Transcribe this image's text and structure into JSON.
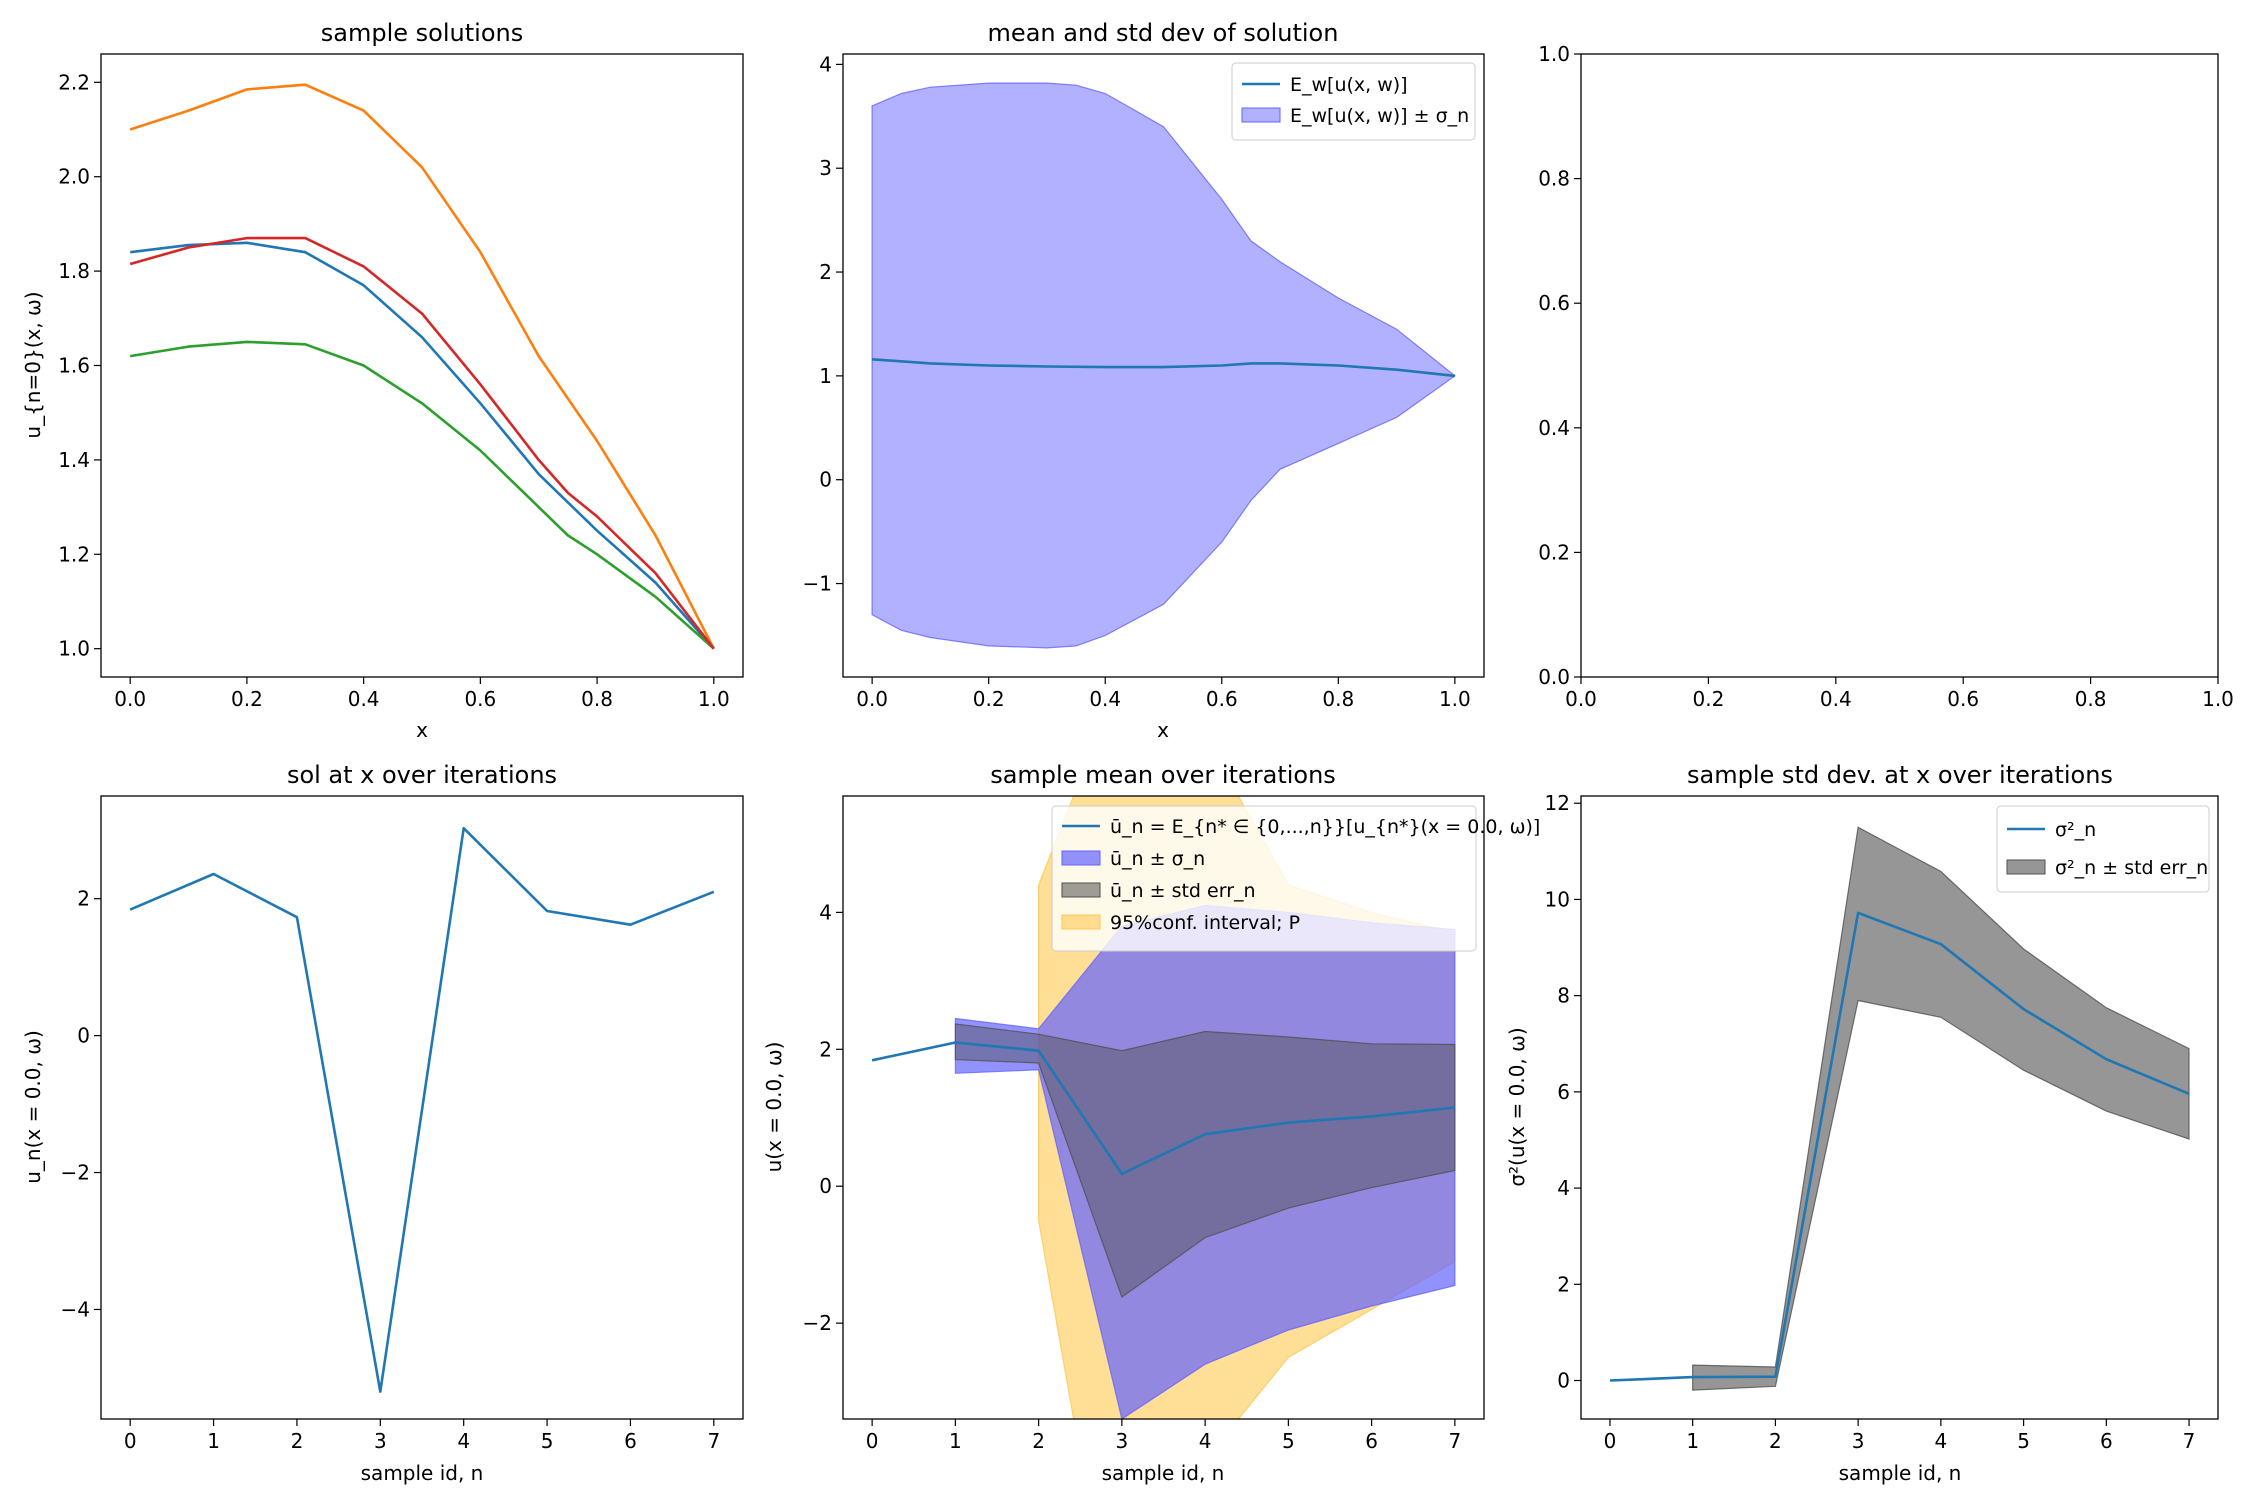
{
  "colors": {
    "c0": "#1f77b4",
    "c1": "#ff7f0e",
    "c2": "#2ca02c",
    "c3": "#d62728",
    "blue_fill": "#6464ff",
    "orange_fill": "#ffc850",
    "gray_fill": "#505050",
    "brown_fill": "#8c5a46"
  },
  "chart_data": [
    {
      "id": "p1",
      "type": "line",
      "title": "sample solutions",
      "xlabel": "x",
      "ylabel": "u_{n=0}(x, ω)",
      "xlim": [
        -0.05,
        1.05
      ],
      "ylim": [
        0.94,
        2.26
      ],
      "xticks": [
        0,
        0.2,
        0.4,
        0.6,
        0.8,
        1.0
      ],
      "xticklabels": [
        "0.0",
        "0.2",
        "0.4",
        "0.6",
        "0.8",
        "1.0"
      ],
      "yticks": [
        1.0,
        1.2,
        1.4,
        1.6,
        1.8,
        2.0,
        2.2
      ],
      "yticklabels": [
        "1.0",
        "1.2",
        "1.4",
        "1.6",
        "1.8",
        "2.0",
        "2.2"
      ],
      "series": [
        {
          "color": "#1f77b4",
          "x": [
            0,
            0.1,
            0.2,
            0.3,
            0.4,
            0.5,
            0.6,
            0.7,
            0.75,
            0.8,
            0.9,
            1.0
          ],
          "y": [
            1.84,
            1.855,
            1.86,
            1.84,
            1.77,
            1.66,
            1.52,
            1.37,
            1.31,
            1.25,
            1.14,
            1.0
          ]
        },
        {
          "color": "#ff7f0e",
          "x": [
            0,
            0.1,
            0.2,
            0.3,
            0.4,
            0.5,
            0.6,
            0.7,
            0.8,
            0.85,
            0.9,
            1.0
          ],
          "y": [
            2.1,
            2.14,
            2.185,
            2.195,
            2.14,
            2.02,
            1.84,
            1.62,
            1.44,
            1.34,
            1.24,
            1.0
          ]
        },
        {
          "color": "#2ca02c",
          "x": [
            0,
            0.1,
            0.2,
            0.3,
            0.4,
            0.5,
            0.6,
            0.7,
            0.75,
            0.8,
            0.9,
            1.0
          ],
          "y": [
            1.62,
            1.64,
            1.65,
            1.645,
            1.6,
            1.52,
            1.42,
            1.3,
            1.24,
            1.2,
            1.11,
            1.0
          ]
        },
        {
          "color": "#d62728",
          "x": [
            0,
            0.1,
            0.2,
            0.3,
            0.4,
            0.5,
            0.6,
            0.7,
            0.75,
            0.8,
            0.9,
            1.0
          ],
          "y": [
            1.815,
            1.85,
            1.87,
            1.87,
            1.81,
            1.71,
            1.56,
            1.4,
            1.33,
            1.28,
            1.16,
            1.0
          ]
        }
      ]
    },
    {
      "id": "p2",
      "type": "area",
      "title": "mean and std dev of solution",
      "xlabel": "x",
      "ylabel": "",
      "xlim": [
        -0.05,
        1.05
      ],
      "ylim": [
        -1.9,
        4.1
      ],
      "xticks": [
        0,
        0.2,
        0.4,
        0.6,
        0.8,
        1.0
      ],
      "xticklabels": [
        "0.0",
        "0.2",
        "0.4",
        "0.6",
        "0.8",
        "1.0"
      ],
      "yticks": [
        -1,
        0,
        1,
        2,
        3,
        4
      ],
      "yticklabels": [
        "−1",
        "0",
        "1",
        "2",
        "3",
        "4"
      ],
      "band": {
        "color": "#6464ff",
        "x": [
          0,
          0.05,
          0.1,
          0.2,
          0.3,
          0.35,
          0.4,
          0.5,
          0.6,
          0.65,
          0.7,
          0.8,
          0.9,
          1.0
        ],
        "lower": [
          -1.3,
          -1.45,
          -1.52,
          -1.6,
          -1.62,
          -1.6,
          -1.5,
          -1.2,
          -0.6,
          -0.2,
          0.1,
          0.35,
          0.6,
          1.0
        ],
        "upper": [
          3.6,
          3.72,
          3.78,
          3.82,
          3.82,
          3.8,
          3.72,
          3.4,
          2.7,
          2.3,
          2.1,
          1.75,
          1.45,
          1.0
        ]
      },
      "mean": {
        "color": "#1f77b4",
        "x": [
          0,
          0.1,
          0.2,
          0.3,
          0.4,
          0.5,
          0.6,
          0.65,
          0.7,
          0.8,
          0.9,
          1.0
        ],
        "y": [
          1.16,
          1.12,
          1.1,
          1.09,
          1.085,
          1.085,
          1.1,
          1.12,
          1.12,
          1.1,
          1.06,
          1.0
        ]
      },
      "legend": {
        "placement": "upper right",
        "entries": [
          "E_w[u(x, w)]",
          "E_w[u(x, w)] ± σ_n"
        ]
      }
    },
    {
      "id": "p3",
      "type": "line",
      "title": "",
      "xlabel": "",
      "ylabel": "",
      "xlim": [
        0,
        1
      ],
      "ylim": [
        0,
        1
      ],
      "xticks": [
        0,
        0.2,
        0.4,
        0.6,
        0.8,
        1.0
      ],
      "xticklabels": [
        "0.0",
        "0.2",
        "0.4",
        "0.6",
        "0.8",
        "1.0"
      ],
      "yticks": [
        0,
        0.2,
        0.4,
        0.6,
        0.8,
        1.0
      ],
      "yticklabels": [
        "0.0",
        "0.2",
        "0.4",
        "0.6",
        "0.8",
        "1.0"
      ],
      "series": []
    },
    {
      "id": "p4",
      "type": "line",
      "title": "sol at x over iterations",
      "xlabel": "sample id, n",
      "ylabel": "u_n(x = 0.0, ω)",
      "xlim": [
        -0.35,
        7.35
      ],
      "ylim": [
        -5.6,
        3.5
      ],
      "xticks": [
        0,
        1,
        2,
        3,
        4,
        5,
        6,
        7
      ],
      "xticklabels": [
        "0",
        "1",
        "2",
        "3",
        "4",
        "5",
        "6",
        "7"
      ],
      "yticks": [
        -4,
        -2,
        0,
        2
      ],
      "yticklabels": [
        "−4",
        "−2",
        "0",
        "2"
      ],
      "series": [
        {
          "color": "#1f77b4",
          "x": [
            0,
            1,
            2,
            3,
            4,
            5,
            6,
            7
          ],
          "y": [
            1.84,
            2.36,
            1.73,
            -5.2,
            3.03,
            1.82,
            1.62,
            2.1
          ]
        }
      ]
    },
    {
      "id": "p5",
      "type": "area",
      "title": "sample mean over iterations",
      "xlabel": "sample id, n",
      "ylabel": "u(x = 0.0, ω)",
      "xlim": [
        -0.35,
        7.35
      ],
      "ylim": [
        -3.4,
        5.7
      ],
      "xticks": [
        0,
        1,
        2,
        3,
        4,
        5,
        6,
        7
      ],
      "xticklabels": [
        "0",
        "1",
        "2",
        "3",
        "4",
        "5",
        "6",
        "7"
      ],
      "yticks": [
        -2,
        0,
        2,
        4
      ],
      "yticklabels": [
        "−2",
        "0",
        "2",
        "4"
      ],
      "conf": {
        "color": "#ffc850",
        "x": [
          2,
          2.42,
          3,
          4.4,
          5,
          6,
          7
        ],
        "lower": [
          -0.5,
          -3.4,
          -5.0,
          -3.4,
          -2.5,
          -1.8,
          -1.1
        ],
        "upper": [
          4.4,
          5.7,
          7.0,
          5.7,
          4.4,
          4.0,
          3.7
        ]
      },
      "std": {
        "color": "#6464ff",
        "x": [
          1,
          2,
          3,
          4,
          5,
          6,
          7
        ],
        "lower": [
          1.65,
          1.7,
          -3.4,
          -2.6,
          -2.1,
          -1.75,
          -1.45
        ],
        "upper": [
          2.45,
          2.3,
          3.8,
          4.1,
          4.0,
          3.85,
          3.75
        ]
      },
      "err": {
        "color": "#505050",
        "x": [
          1,
          2,
          3,
          4,
          5,
          6,
          7
        ],
        "lower": [
          1.85,
          1.8,
          -1.62,
          -0.75,
          -0.32,
          -0.02,
          0.23
        ],
        "upper": [
          2.37,
          2.22,
          1.98,
          2.26,
          2.18,
          2.08,
          2.07
        ]
      },
      "mean": {
        "color": "#1f77b4",
        "x": [
          0,
          1,
          2,
          3,
          4,
          5,
          6,
          7
        ],
        "y": [
          1.84,
          2.1,
          1.98,
          0.18,
          0.76,
          0.93,
          1.02,
          1.15
        ]
      },
      "legend": {
        "placement": "upper right",
        "entries": [
          "ū_n = E_{n* ∈ {0,...,n}}[u_{n*}(x = 0.0, ω)]",
          "ū_n ± σ_n",
          "ū_n ±  std err_n",
          "95%conf. interval; P"
        ]
      }
    },
    {
      "id": "p6",
      "type": "area",
      "title": "sample std dev. at x over iterations",
      "xlabel": "sample id, n",
      "ylabel": "σ²(u(x = 0.0, ω)",
      "xlim": [
        -0.35,
        7.35
      ],
      "ylim": [
        -0.8,
        12.15
      ],
      "xticks": [
        0,
        1,
        2,
        3,
        4,
        5,
        6,
        7
      ],
      "xticklabels": [
        "0",
        "1",
        "2",
        "3",
        "4",
        "5",
        "6",
        "7"
      ],
      "yticks": [
        0,
        2,
        4,
        6,
        8,
        10,
        12
      ],
      "yticklabels": [
        "0",
        "2",
        "4",
        "6",
        "8",
        "10",
        "12"
      ],
      "band": {
        "color": "#505050",
        "x": [
          1,
          2,
          3,
          4,
          5,
          6,
          7
        ],
        "lower": [
          -0.2,
          -0.12,
          7.9,
          7.55,
          6.45,
          5.6,
          5.02
        ],
        "upper": [
          0.32,
          0.28,
          11.5,
          10.58,
          8.97,
          7.75,
          6.9
        ]
      },
      "mean": {
        "color": "#1f77b4",
        "x": [
          0,
          1,
          2,
          3,
          4,
          5,
          6,
          7
        ],
        "y": [
          0,
          0.07,
          0.08,
          9.72,
          9.07,
          7.72,
          6.68,
          5.96
        ]
      },
      "legend": {
        "placement": "upper right",
        "entries": [
          "σ²_n",
          "σ²_n ±  std err_n"
        ]
      }
    }
  ]
}
